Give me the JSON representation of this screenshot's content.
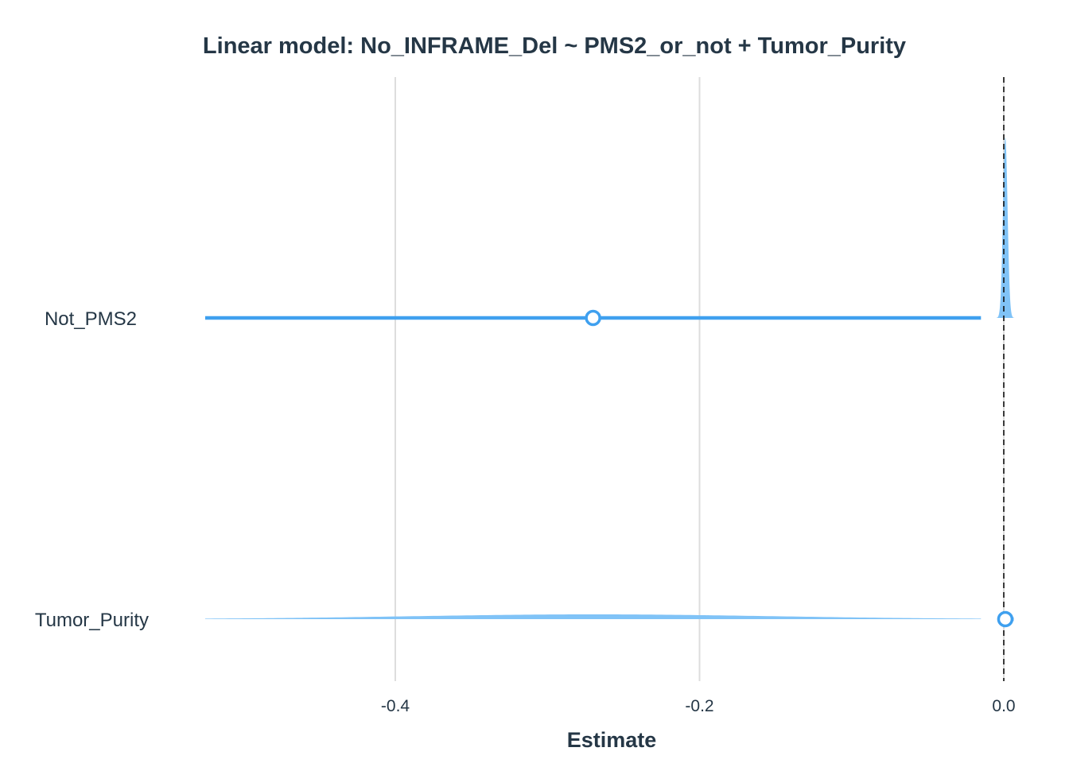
{
  "chart_data": {
    "type": "forest",
    "title": "Linear model: No_INFRAME_Del ~ PMS2_or_not + Tumor_Purity",
    "xlabel": "Estimate",
    "ylabel": "",
    "xlim": [
      -0.52,
      0.015
    ],
    "x_ticks": [
      {
        "value": -0.4,
        "label": "-0.4"
      },
      {
        "value": -0.2,
        "label": "-0.2"
      },
      {
        "value": 0.0,
        "label": "0.0"
      }
    ],
    "reference_line": 0,
    "grid": "vertical",
    "colors": {
      "point": "#3fa0ef",
      "interval": "#3fa0ef",
      "density": "#80c3f7",
      "text": "#253746",
      "grid": "#dddddd"
    },
    "terms": [
      {
        "name": "Not_PMS2",
        "estimate": -0.27,
        "ci_low": -0.525,
        "ci_high": -0.015,
        "density_sd": 0.0015,
        "density_center": 0.001,
        "density_range": [
          -0.006,
          0.008
        ]
      },
      {
        "name": "Tumor_Purity",
        "estimate": 0.001,
        "ci_low": -0.0015,
        "ci_high": 0.0065,
        "density_sd": 0.12,
        "density_center": -0.27,
        "density_range": [
          -0.525,
          -0.015
        ]
      }
    ]
  }
}
